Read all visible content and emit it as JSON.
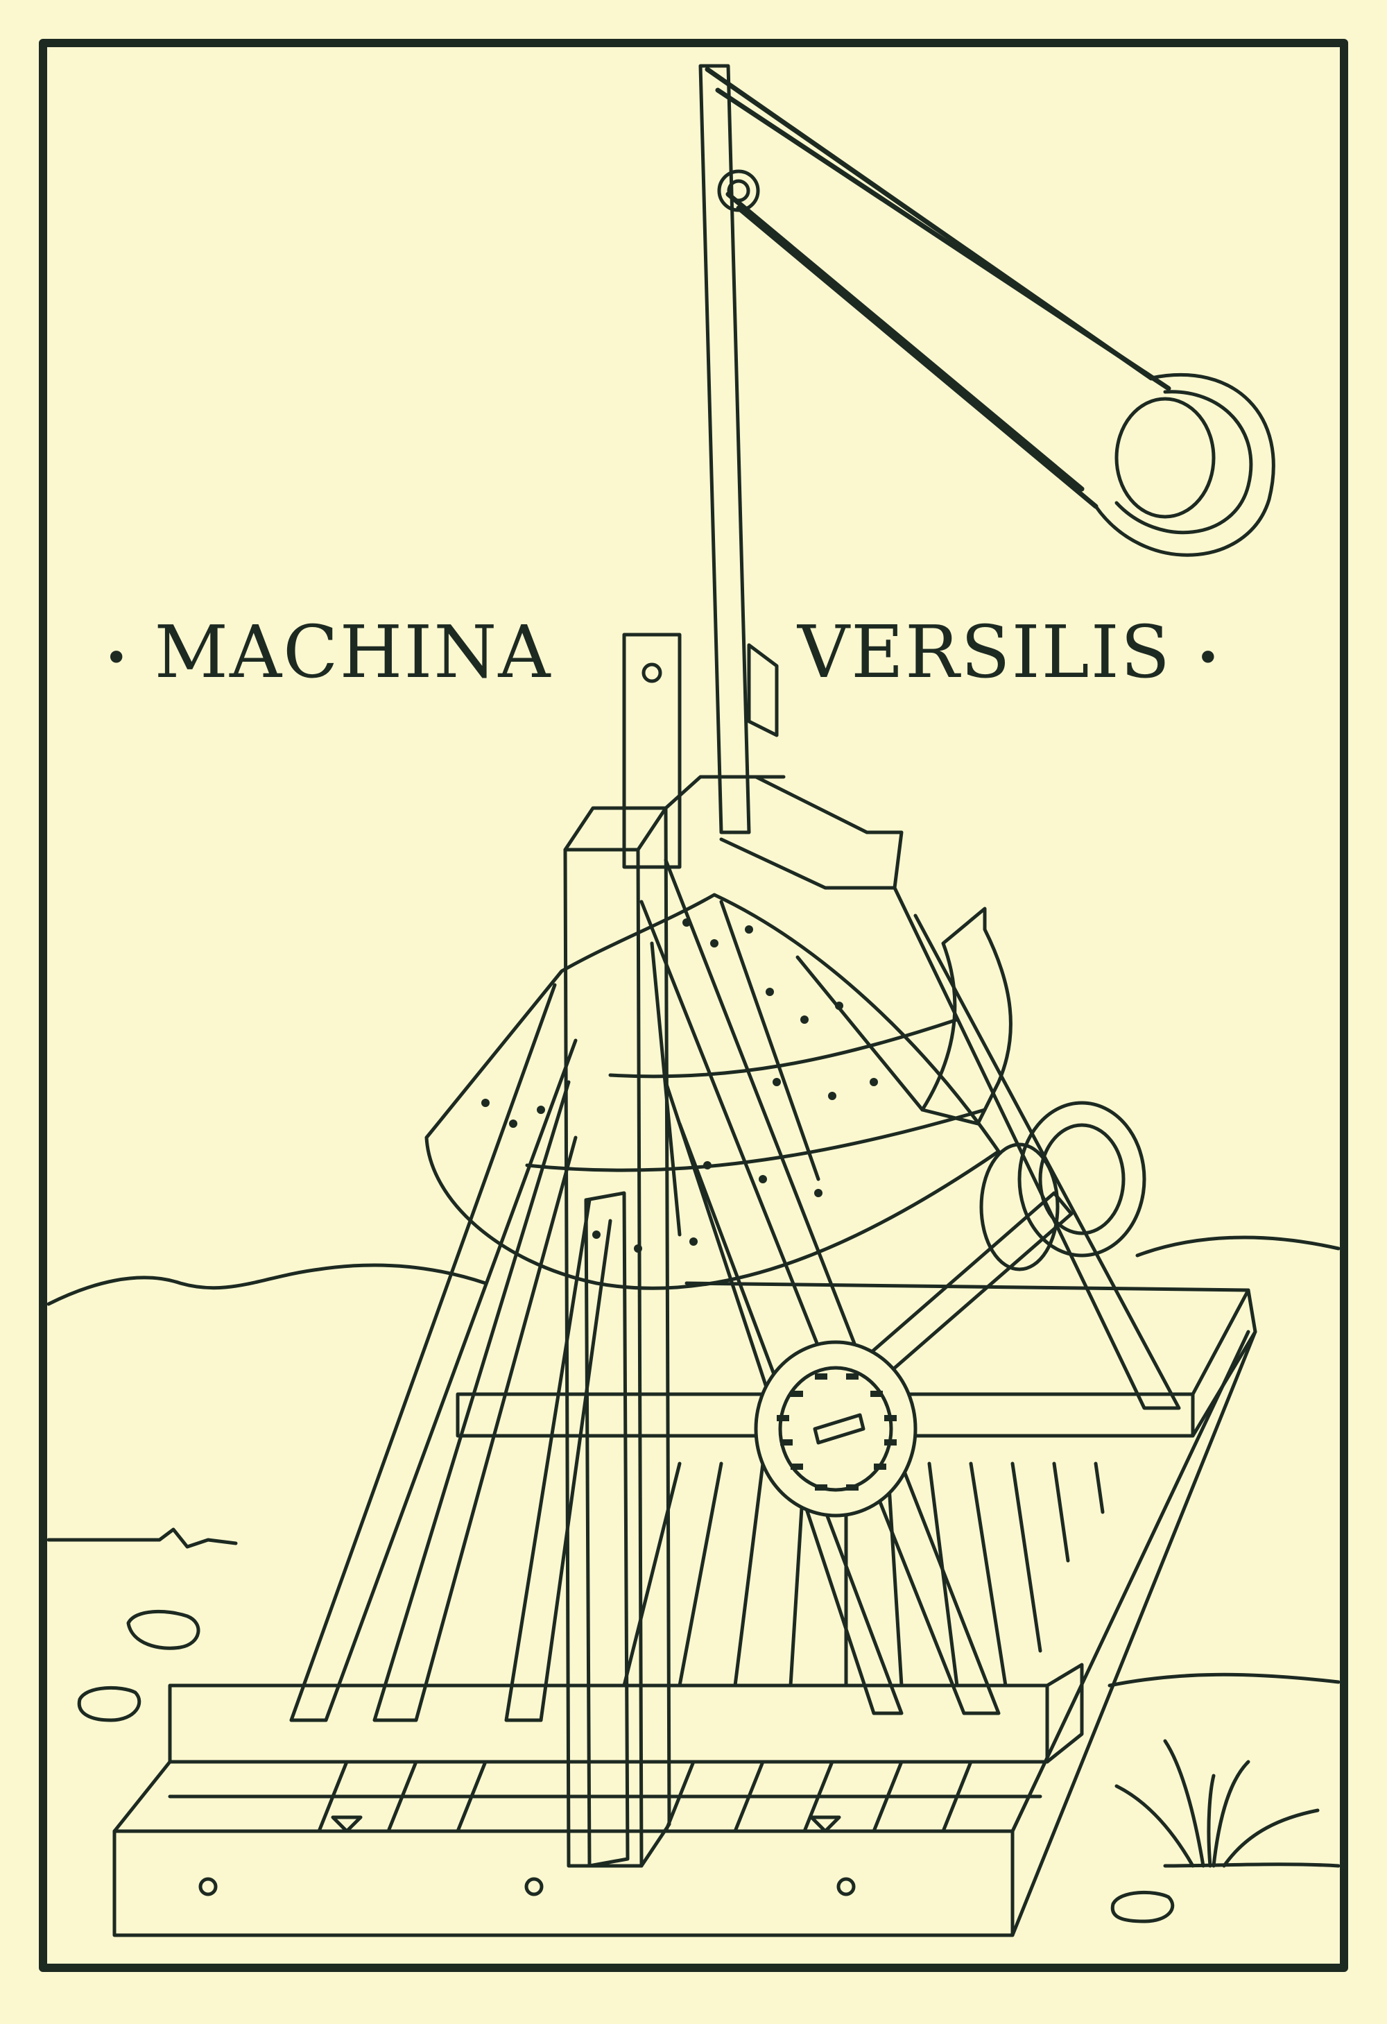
{
  "title": {
    "word_left": "MACHINA",
    "word_right": "VERSILIS",
    "ornament": "•"
  },
  "colors": {
    "paper": "#fbf8cf",
    "ink": "#1d2a22"
  }
}
